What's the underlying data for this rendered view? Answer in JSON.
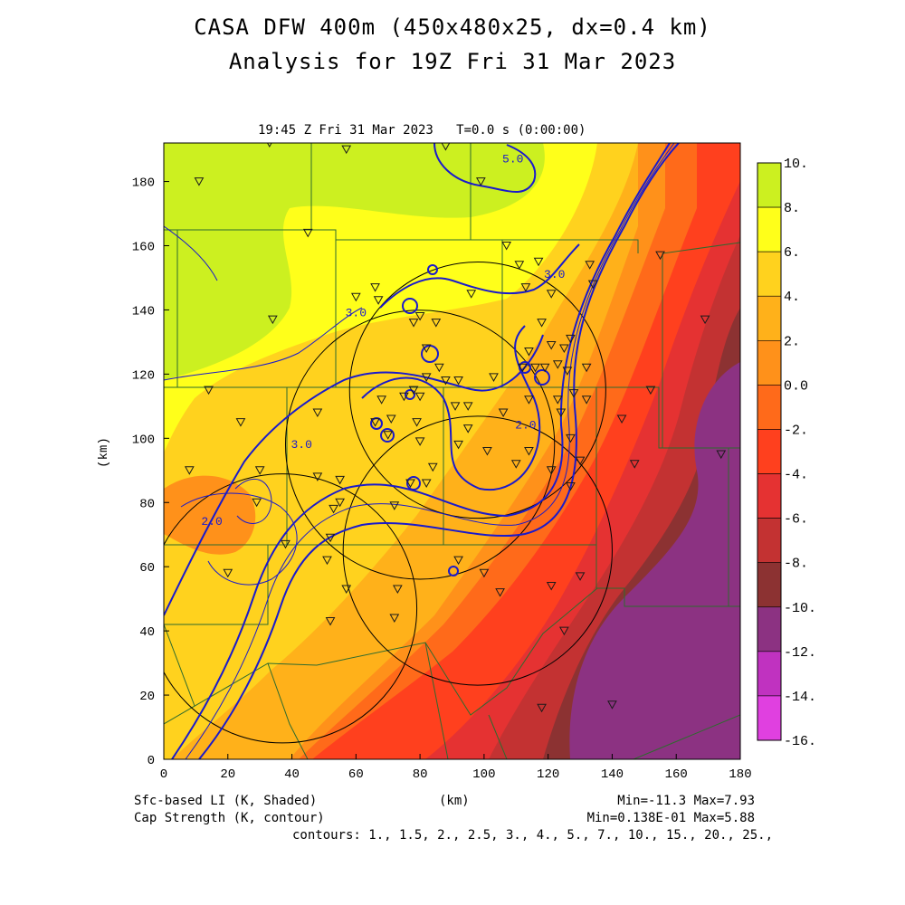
{
  "header": {
    "title_line1": "CASA DFW 400m (450x480x25, dx=0.4 km)",
    "title_line2": "Analysis for 19Z Fri 31 Mar 2023",
    "subtitle": "19:45 Z Fri 31 Mar 2023   T=0.0 s (0:00:00)"
  },
  "footer": {
    "shaded_label": "Sfc-based LI (K, Shaded)",
    "contour_label": "Cap Strength (K, contour)",
    "xunit": "(km)",
    "shaded_minmax": "Min=-11.3 Max=7.93",
    "contour_minmax": "Min=0.138E-01 Max=5.88",
    "contours": "contours: 1., 1.5, 2., 2.5, 3., 4., 5., 7., 10., 15., 20., 25.,"
  },
  "colors": {
    "contour": "#1a1acc",
    "county_lines": "#2e6b2e",
    "radar_rings": "#000000"
  },
  "chart_data": {
    "type": "heatmap",
    "xlabel": "",
    "ylabel": "(km)",
    "xlim": [
      0,
      180
    ],
    "ylim": [
      0,
      192
    ],
    "xticks": [
      0,
      20,
      40,
      60,
      80,
      100,
      120,
      140,
      160,
      180
    ],
    "yticks": [
      0,
      20,
      40,
      60,
      80,
      100,
      120,
      140,
      160,
      180
    ],
    "colorbar": {
      "labels": [
        "10.",
        "8.",
        "6.",
        "4.",
        "2.",
        "0.0",
        "-2.",
        "-4.",
        "-6.",
        "-8.",
        "-10.",
        "-12.",
        "-14.",
        "-16."
      ],
      "colors": [
        "#a6e01a",
        "#ccf020",
        "#ffff1a",
        "#ffd21e",
        "#ffb11a",
        "#ff911a",
        "#ff6a1a",
        "#ff401e",
        "#e53232",
        "#c33232",
        "#8c3232",
        "#8c3282",
        "#c032c0",
        "#e040e0"
      ]
    },
    "contour_labels": [
      {
        "text": "3.0",
        "x": 60,
        "y": 138
      },
      {
        "text": "3.0",
        "x": 122,
        "y": 150
      },
      {
        "text": "3.0",
        "x": 43,
        "y": 97
      },
      {
        "text": "2.0",
        "x": 113,
        "y": 103
      },
      {
        "text": "2.0",
        "x": 15,
        "y": 73
      },
      {
        "text": "5.0",
        "x": 109,
        "y": 186
      }
    ],
    "radar_rings": [
      {
        "cx": 98,
        "cy": 115,
        "r": 40
      },
      {
        "cx": 80,
        "cy": 98,
        "r": 42
      },
      {
        "cx": 98,
        "cy": 65,
        "r": 42
      },
      {
        "cx": 37,
        "cy": 47,
        "r": 42
      }
    ],
    "stations": [
      [
        11,
        180
      ],
      [
        57,
        190
      ],
      [
        33,
        192
      ],
      [
        88,
        191
      ],
      [
        99,
        180
      ],
      [
        45,
        164
      ],
      [
        107,
        160
      ],
      [
        111,
        154
      ],
      [
        117,
        155
      ],
      [
        121,
        145
      ],
      [
        113,
        147
      ],
      [
        96,
        145
      ],
      [
        66,
        147
      ],
      [
        67,
        143
      ],
      [
        60,
        144
      ],
      [
        34,
        137
      ],
      [
        78,
        136
      ],
      [
        85,
        136
      ],
      [
        80,
        138
      ],
      [
        118,
        136
      ],
      [
        114,
        127
      ],
      [
        121,
        129
      ],
      [
        125,
        128
      ],
      [
        127,
        131
      ],
      [
        132,
        122
      ],
      [
        134,
        148
      ],
      [
        133,
        154
      ],
      [
        82,
        128
      ],
      [
        86,
        122
      ],
      [
        82,
        119
      ],
      [
        88,
        118
      ],
      [
        92,
        118
      ],
      [
        103,
        119
      ],
      [
        112,
        122
      ],
      [
        116,
        122
      ],
      [
        119,
        122
      ],
      [
        123,
        123
      ],
      [
        126,
        121
      ],
      [
        68,
        112
      ],
      [
        75,
        113
      ],
      [
        78,
        115
      ],
      [
        80,
        113
      ],
      [
        91,
        110
      ],
      [
        95,
        110
      ],
      [
        114,
        112
      ],
      [
        124,
        108
      ],
      [
        123,
        112
      ],
      [
        128,
        114
      ],
      [
        132,
        112
      ],
      [
        143,
        106
      ],
      [
        152,
        115
      ],
      [
        14,
        115
      ],
      [
        8,
        90
      ],
      [
        24,
        105
      ],
      [
        48,
        108
      ],
      [
        66,
        105
      ],
      [
        71,
        106
      ],
      [
        79,
        105
      ],
      [
        92,
        98
      ],
      [
        95,
        103
      ],
      [
        101,
        96
      ],
      [
        80,
        99
      ],
      [
        84,
        91
      ],
      [
        70,
        101
      ],
      [
        106,
        108
      ],
      [
        110,
        92
      ],
      [
        114,
        96
      ],
      [
        121,
        90
      ],
      [
        127,
        100
      ],
      [
        130,
        93
      ],
      [
        147,
        92
      ],
      [
        127,
        85
      ],
      [
        30,
        90
      ],
      [
        29,
        80
      ],
      [
        48,
        88
      ],
      [
        55,
        87
      ],
      [
        77,
        86
      ],
      [
        82,
        86
      ],
      [
        55,
        80
      ],
      [
        53,
        78
      ],
      [
        72,
        79
      ],
      [
        38,
        67
      ],
      [
        52,
        69
      ],
      [
        73,
        53
      ],
      [
        51,
        62
      ],
      [
        92,
        62
      ],
      [
        100,
        58
      ],
      [
        105,
        52
      ],
      [
        121,
        54
      ],
      [
        130,
        57
      ],
      [
        125,
        40
      ],
      [
        118,
        16
      ],
      [
        140,
        17
      ],
      [
        20,
        58
      ],
      [
        57,
        53
      ],
      [
        72,
        44
      ],
      [
        52,
        43
      ],
      [
        155,
        157
      ],
      [
        169,
        137
      ],
      [
        174,
        95
      ]
    ]
  }
}
